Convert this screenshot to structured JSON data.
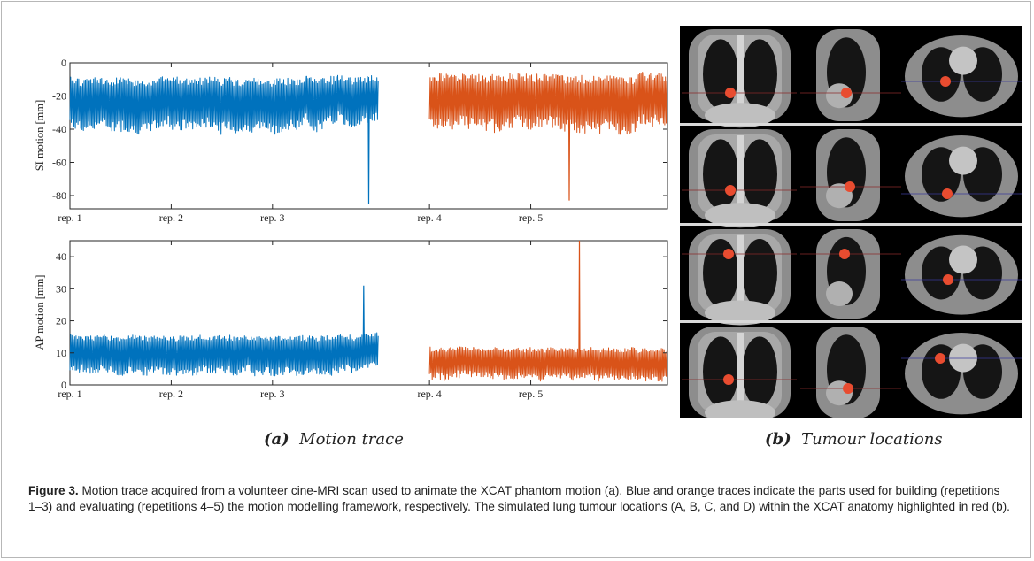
{
  "figure": {
    "label": "Figure 3.",
    "caption": "Motion trace acquired from a volunteer cine-MRI scan used to animate the XCAT phantom motion (a). Blue and orange traces indicate the parts used for building (repetitions 1–3) and evaluating (repetitions 4–5) the motion modelling framework, respectively. The simulated lung tumour locations (A, B, C, and D) within the XCAT anatomy highlighted in red (b).",
    "subcaption_a_letter": "(a)",
    "subcaption_a_text": "Motion trace",
    "subcaption_b_letter": "(b)",
    "subcaption_b_text": "Tumour locations",
    "tumour_color": "#e84c30"
  },
  "chart_data": [
    {
      "type": "line",
      "ylabel": "SI motion [mm]",
      "ylim": [
        -88,
        0
      ],
      "yticks": [
        0,
        -20,
        -40,
        -60,
        -80
      ],
      "xticklabels": [
        "rep. 1",
        "rep. 2",
        "rep. 3",
        "rep. 4",
        "rep. 5"
      ],
      "xticks": [
        0,
        1,
        2,
        3.55,
        4.55
      ],
      "xlim": [
        0,
        5.9
      ],
      "grid": false,
      "series": [
        {
          "part": "build",
          "color": "#0072bd",
          "x_range": [
            0,
            3.05
          ],
          "low": -40,
          "high": -8,
          "spike": {
            "x": 2.95,
            "value": -85
          }
        },
        {
          "part": "evaluate",
          "color": "#d95319",
          "x_range": [
            3.55,
            5.9
          ],
          "low": -40,
          "high": -6,
          "spike": {
            "x": 4.93,
            "value": -83
          }
        }
      ]
    },
    {
      "type": "line",
      "ylabel": "AP motion [mm]",
      "ylim": [
        0,
        45
      ],
      "yticks": [
        0,
        10,
        20,
        30,
        40
      ],
      "xticklabels": [
        "rep. 1",
        "rep. 2",
        "rep. 3",
        "rep. 4",
        "rep. 5"
      ],
      "xticks": [
        0,
        1,
        2,
        3.55,
        4.55
      ],
      "xlim": [
        0,
        5.9
      ],
      "grid": false,
      "series": [
        {
          "part": "build",
          "color": "#0072bd",
          "x_range": [
            0,
            3.05
          ],
          "low": 4,
          "high": 16,
          "spike": {
            "x": 2.9,
            "value": 31
          }
        },
        {
          "part": "evaluate",
          "color": "#d95319",
          "x_range": [
            3.55,
            5.9
          ],
          "low": 2,
          "high": 12,
          "spike": {
            "x": 5.03,
            "value": 45
          }
        }
      ]
    }
  ]
}
